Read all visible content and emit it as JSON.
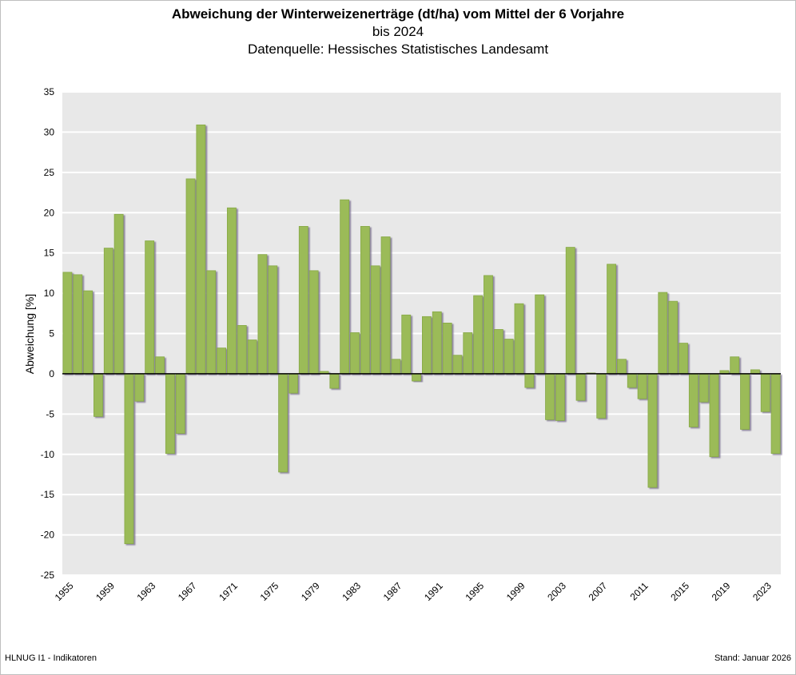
{
  "chart_data": {
    "type": "bar",
    "title": "Abweichung der Winterweizenerträge (dt/ha) vom Mittel der 6 Vorjahre",
    "subtitle": [
      "bis 2024",
      "Datenquelle: Hessisches Statistisches Landesamt"
    ],
    "xlabel": "",
    "ylabel": "Abweichung [%]",
    "ylim": [
      -25,
      35
    ],
    "yticks": [
      35,
      30,
      25,
      20,
      15,
      10,
      5,
      0,
      -5,
      -10,
      -15,
      -20,
      -25
    ],
    "xtick_labels": [
      "1955",
      "1959",
      "1963",
      "1967",
      "1971",
      "1975",
      "1979",
      "1983",
      "1987",
      "1991",
      "1995",
      "1999",
      "2003",
      "2007",
      "2011",
      "2015",
      "2019",
      "2023"
    ],
    "grid": true,
    "bar_color": "#9bbb59",
    "plot_background": "#e8e8e8",
    "categories": [
      1955,
      1956,
      1957,
      1958,
      1959,
      1960,
      1961,
      1962,
      1963,
      1964,
      1965,
      1966,
      1967,
      1968,
      1969,
      1970,
      1971,
      1972,
      1973,
      1974,
      1975,
      1976,
      1977,
      1978,
      1979,
      1980,
      1981,
      1982,
      1983,
      1984,
      1985,
      1986,
      1987,
      1988,
      1989,
      1990,
      1991,
      1992,
      1993,
      1994,
      1995,
      1996,
      1997,
      1998,
      1999,
      2000,
      2001,
      2002,
      2003,
      2004,
      2005,
      2006,
      2007,
      2008,
      2009,
      2010,
      2011,
      2012,
      2013,
      2014,
      2015,
      2016,
      2017,
      2018,
      2019,
      2020,
      2021,
      2022,
      2023,
      2024
    ],
    "values": [
      12.6,
      12.3,
      10.3,
      -5.3,
      15.6,
      19.8,
      -21.1,
      -3.4,
      16.5,
      2.1,
      -9.9,
      -7.4,
      24.2,
      30.9,
      12.8,
      3.2,
      20.6,
      6.0,
      4.2,
      14.8,
      13.4,
      -12.2,
      -2.4,
      18.3,
      12.8,
      0.3,
      -1.8,
      21.6,
      5.1,
      18.3,
      13.4,
      17.0,
      1.8,
      7.3,
      -0.9,
      7.1,
      7.7,
      6.3,
      2.3,
      5.1,
      9.7,
      12.2,
      5.5,
      4.3,
      8.7,
      -1.7,
      9.8,
      -5.7,
      -5.8,
      15.7,
      -3.3,
      0.1,
      -5.5,
      13.6,
      1.8,
      -1.7,
      -3.1,
      -14.1,
      10.1,
      9.0,
      3.8,
      -6.6,
      -3.5,
      -10.3,
      0.4,
      2.1,
      -6.9,
      0.5,
      -4.7,
      -9.9
    ]
  },
  "footer": {
    "left": "HLNUG I1 - Indikatoren",
    "right": "Stand: Januar 2026"
  }
}
